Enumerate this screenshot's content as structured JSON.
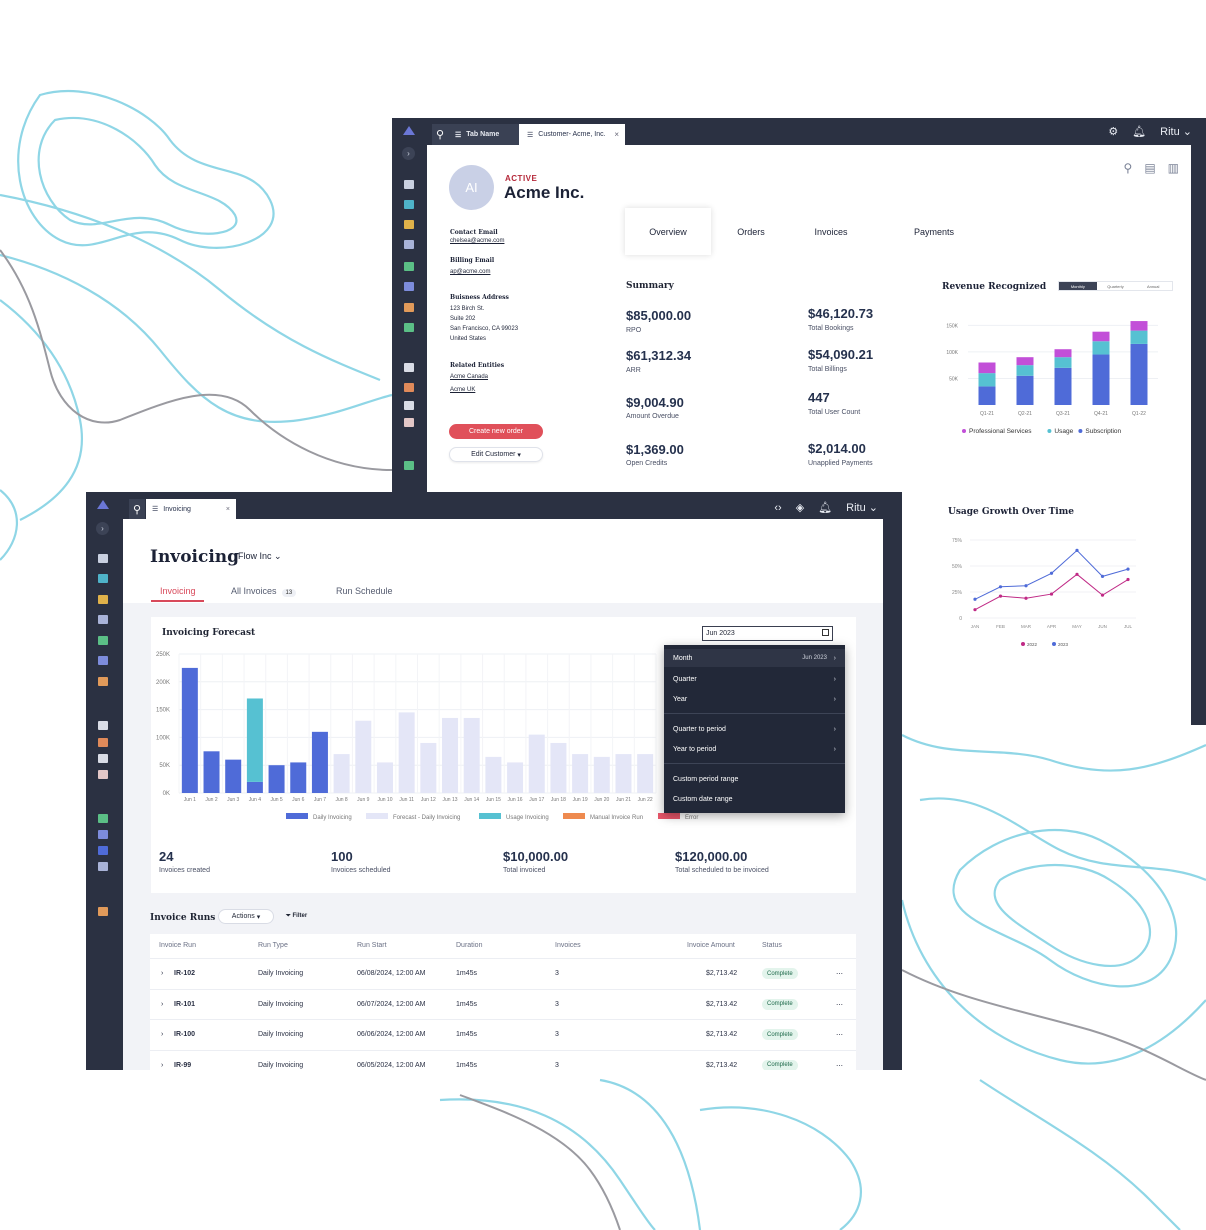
{
  "colors": {
    "rail_bg": "#2b3142",
    "accent_red": "#e0505a",
    "bar_blue": "#4f6bd8",
    "bar_teal": "#56c1d2",
    "bar_purple": "#c24fd8",
    "forecast_lavender": "#e4e6f7",
    "contour_teal": "#8fd6e6",
    "contour_gray": "#9a9aa0"
  },
  "customer_window": {
    "tabs": [
      {
        "label": "Tab Name",
        "icon": "list-icon"
      },
      {
        "label": "Customer- Acme, Inc.",
        "icon": "list-icon"
      }
    ],
    "user": "Ritu",
    "avatar_initials": "AI",
    "status": "ACTIVE",
    "name": "Acme Inc.",
    "contact_email_label": "Contact Email",
    "contact_email": "chelsea@acme.com",
    "billing_email_label": "Billing Email",
    "billing_email": "ap@acme.com",
    "address_label": "Buisness Address",
    "address_lines": [
      "123 Birch St.",
      "Suite 202",
      "San Francisco, CA 99023",
      "United States"
    ],
    "related_label": "Related Entities",
    "related": [
      "Acme Canada",
      "Acme UK"
    ],
    "create_order": "Create new order",
    "edit_customer": "Edit Customer",
    "nav_tabs": [
      "Overview",
      "Orders",
      "Invoices",
      "Payments"
    ],
    "summary_title": "Summary",
    "metrics": [
      {
        "value": "$85,000.00",
        "label": "RPO"
      },
      {
        "value": "$46,120.73",
        "label": "Total Bookings"
      },
      {
        "value": "$61,312.34",
        "label": "ARR"
      },
      {
        "value": "$54,090.21",
        "label": "Total Billings"
      },
      {
        "value": "$9,004.90",
        "label": "Amount Overdue"
      },
      {
        "value": "447",
        "label": "Total User Count"
      },
      {
        "value": "$1,369.00",
        "label": "Open Credits"
      },
      {
        "value": "$2,014.00",
        "label": "Unapplied Payments"
      }
    ],
    "revenue_title": "Revenue Recognized",
    "revenue_toggle": [
      "Monthly",
      "Quarterly",
      "Annual"
    ],
    "revenue_toggle_selected": "Monthly",
    "usage_title": "Usage Growth Over Time"
  },
  "invoicing_window": {
    "tab_label": "Invoicing",
    "user": "Ritu",
    "title": "Invoicing",
    "company": "Flow Inc",
    "tabs": [
      "Invoicing",
      "All Invoices",
      "Run Schedule"
    ],
    "all_invoices_count": "13",
    "forecast_title": "Invoicing Forecast",
    "date_select": "Jun 2023",
    "dropdown": {
      "month": "Month",
      "month_value": "Jun 2023",
      "quarter": "Quarter",
      "year": "Year",
      "quarter_to_period": "Quarter to period",
      "year_to_period": "Year to period",
      "custom_period_range": "Custom period range",
      "custom_date_range": "Custom date range"
    },
    "stats": [
      {
        "value": "24",
        "label": "Invoices created"
      },
      {
        "value": "100",
        "label": "Invoices scheduled"
      },
      {
        "value": "$10,000.00",
        "label": "Total invoiced"
      },
      {
        "value": "$120,000.00",
        "label": "Total scheduled to be invoiced"
      }
    ],
    "runs_title": "Invoice Runs",
    "actions_label": "Actions",
    "filter_label": "Filter",
    "columns": [
      "Invoice Run",
      "Run Type",
      "Run Start",
      "Duration",
      "Invoices",
      "Invoice Amount",
      "Status"
    ],
    "rows": [
      {
        "id": "IR-102",
        "type": "Daily Invoicing",
        "start": "06/08/2024, 12:00 AM",
        "duration": "1m45s",
        "invoices": "3",
        "amount": "$2,713.42",
        "status": "Complete"
      },
      {
        "id": "IR-101",
        "type": "Daily Invoicing",
        "start": "06/07/2024, 12:00 AM",
        "duration": "1m45s",
        "invoices": "3",
        "amount": "$2,713.42",
        "status": "Complete"
      },
      {
        "id": "IR-100",
        "type": "Daily Invoicing",
        "start": "06/06/2024, 12:00 AM",
        "duration": "1m45s",
        "invoices": "3",
        "amount": "$2,713.42",
        "status": "Complete"
      },
      {
        "id": "IR-99",
        "type": "Daily Invoicing",
        "start": "06/05/2024, 12:00 AM",
        "duration": "1m45s",
        "invoices": "3",
        "amount": "$2,713.42",
        "status": "Complete"
      }
    ]
  },
  "chart_data": [
    {
      "type": "bar",
      "title": "Revenue Recognized",
      "stacked": true,
      "categories": [
        "Q1-21",
        "Q2-21",
        "Q3-21",
        "Q4-21",
        "Q1-22"
      ],
      "y_ticks": [
        "50K",
        "100K",
        "150K"
      ],
      "ylim": [
        0,
        160000
      ],
      "series": [
        {
          "name": "Subscription",
          "color": "#4f6bd8",
          "values": [
            35000,
            55000,
            70000,
            95000,
            115000
          ]
        },
        {
          "name": "Usage",
          "color": "#56c1d2",
          "values": [
            25000,
            20000,
            20000,
            25000,
            25000
          ]
        },
        {
          "name": "Professional Services",
          "color": "#c24fd8",
          "values": [
            20000,
            15000,
            15000,
            18000,
            18000
          ]
        }
      ],
      "legend": [
        "Professional Services",
        "Usage",
        "Subscription"
      ],
      "legend_position": "bottom"
    },
    {
      "type": "line",
      "title": "Usage Growth Over Time",
      "categories": [
        "JAN",
        "FEB",
        "MAR",
        "APR",
        "MAY",
        "JUN",
        "JUL"
      ],
      "y_ticks": [
        "0",
        "25%",
        "50%",
        "75%"
      ],
      "ylim": [
        0,
        75
      ],
      "series": [
        {
          "name": "2022",
          "color": "#c02a86",
          "values": [
            8,
            21,
            19,
            23,
            42,
            22,
            37
          ]
        },
        {
          "name": "2023",
          "color": "#4f6bd8",
          "values": [
            18,
            30,
            31,
            43,
            65,
            40,
            47
          ]
        }
      ],
      "legend_position": "bottom"
    },
    {
      "type": "bar",
      "title": "Invoicing Forecast",
      "categories": [
        "Jun 1",
        "Jun 2",
        "Jun 3",
        "Jun 4",
        "Jun 5",
        "Jun 6",
        "Jun 7",
        "Jun 8",
        "Jun 9",
        "Jun 10",
        "Jun 11",
        "Jun 12",
        "Jun 13",
        "Jun 14",
        "Jun 15",
        "Jun 16",
        "Jun 17",
        "Jun 18",
        "Jun 19",
        "Jun 20",
        "Jun 21",
        "Jun 22"
      ],
      "y_ticks": [
        "0K",
        "50K",
        "100K",
        "150K",
        "200K",
        "250K"
      ],
      "ylim": [
        0,
        250000
      ],
      "series": [
        {
          "name": "Daily Invoicing",
          "color": "#4f6bd8",
          "values": [
            225000,
            75000,
            60000,
            20000,
            50000,
            55000,
            110000,
            0,
            0,
            0,
            0,
            0,
            0,
            0,
            0,
            0,
            0,
            0,
            0,
            0,
            0,
            0
          ]
        },
        {
          "name": "Forecast - Daily Invoicing",
          "color": "#e4e6f7",
          "values": [
            0,
            0,
            0,
            0,
            0,
            0,
            0,
            70000,
            130000,
            55000,
            145000,
            90000,
            135000,
            135000,
            65000,
            55000,
            105000,
            90000,
            70000,
            65000,
            70000,
            70000
          ]
        },
        {
          "name": "Usage Invoicing",
          "color": "#56c1d2",
          "values": [
            0,
            0,
            0,
            150000,
            0,
            0,
            0,
            0,
            0,
            0,
            0,
            0,
            0,
            0,
            0,
            0,
            0,
            0,
            0,
            0,
            0,
            0
          ]
        },
        {
          "name": "Manual Invoice Run",
          "color": "#ee8a4f",
          "values": [
            0,
            0,
            0,
            0,
            0,
            0,
            0,
            0,
            0,
            0,
            0,
            0,
            0,
            0,
            0,
            0,
            0,
            0,
            0,
            0,
            0,
            0
          ]
        },
        {
          "name": "Error",
          "color": "#e9566a",
          "values": [
            0,
            0,
            0,
            0,
            0,
            0,
            0,
            0,
            0,
            0,
            0,
            0,
            0,
            0,
            0,
            0,
            0,
            0,
            0,
            0,
            0,
            0
          ]
        }
      ],
      "stacked": true,
      "legend_position": "bottom"
    }
  ]
}
